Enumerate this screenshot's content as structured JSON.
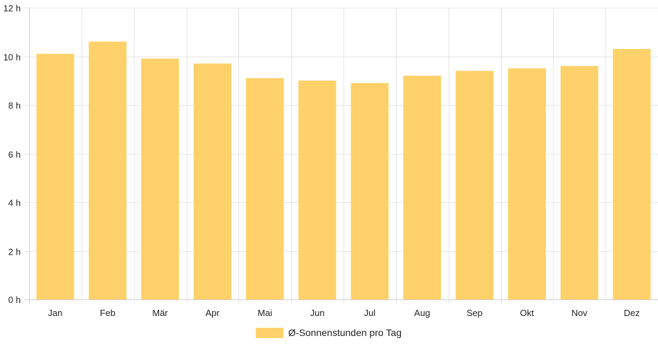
{
  "chart_data": {
    "type": "bar",
    "categories": [
      "Jan",
      "Feb",
      "Mär",
      "Apr",
      "Mai",
      "Jun",
      "Jul",
      "Aug",
      "Sep",
      "Okt",
      "Nov",
      "Dez"
    ],
    "series": [
      {
        "name": "Ø-Sonnenstunden pro Tag",
        "values": [
          10.1,
          10.6,
          9.9,
          9.7,
          9.1,
          9.0,
          8.9,
          9.2,
          9.4,
          9.5,
          9.6,
          10.3
        ],
        "color": "#fed16a"
      }
    ],
    "y_ticks": [
      "0 h",
      "2 h",
      "4 h",
      "6 h",
      "8 h",
      "10 h",
      "12 h"
    ],
    "ylim": [
      0,
      12
    ],
    "y_step": 2,
    "grid": true,
    "legend_position": "bottom"
  }
}
